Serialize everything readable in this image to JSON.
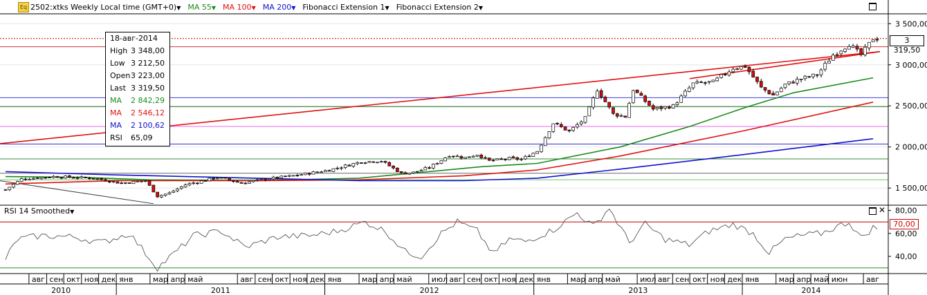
{
  "header": {
    "app_icon": "Eq",
    "instrument": "2502:xtks Weekly Local time (GMT+0)",
    "indicators": [
      {
        "label": "MA 55",
        "color": "#1a8a1a"
      },
      {
        "label": "MA 100",
        "color": "#e01010"
      },
      {
        "label": "MA 200",
        "color": "#1010cc"
      },
      {
        "label": "Fibonacci Extension 1",
        "color": "#000000"
      },
      {
        "label": "Fibonacci Extension 2",
        "color": "#000000"
      }
    ]
  },
  "tooltip": {
    "date": "18-авг-2014",
    "rows": [
      {
        "key": "High",
        "value": "3 348,00",
        "color": "#000000"
      },
      {
        "key": "Low",
        "value": "3 212,50",
        "color": "#000000"
      },
      {
        "key": "Open",
        "value": "3 223,00",
        "color": "#000000"
      },
      {
        "key": "Last",
        "value": "3 319,50",
        "color": "#000000"
      },
      {
        "key": "MA",
        "value": "2 842,29",
        "color": "#1a8a1a"
      },
      {
        "key": "MA",
        "value": "2 546,12",
        "color": "#e01010"
      },
      {
        "key": "MA",
        "value": "2 100,62",
        "color": "#1010cc"
      },
      {
        "key": "RSI",
        "value": "65,09",
        "color": "#000000"
      }
    ]
  },
  "rsi_panel": {
    "title": "RSI 14 Smoothed",
    "current_value": "70,00",
    "close_icon": "close-icon"
  },
  "chart_data": {
    "type": "candlestick",
    "price_axis": {
      "ticks": [
        {
          "value": 1500,
          "label": "1 500,00"
        },
        {
          "value": 2000,
          "label": "2 000,00"
        },
        {
          "value": 2500,
          "label": "2 500,00"
        },
        {
          "value": 3000,
          "label": "3 000,00"
        },
        {
          "value": 3500,
          "label": "3 500,00"
        }
      ],
      "range": [
        1300,
        3620
      ],
      "last_price": 3319.5,
      "last_price_label": "3 319,50"
    },
    "rsi_axis": {
      "ticks": [
        {
          "value": 40,
          "label": "40,00"
        },
        {
          "value": 60,
          "label": "60,00"
        },
        {
          "value": 80,
          "label": "80,00"
        }
      ],
      "range": [
        25,
        84
      ],
      "overbought": 70,
      "oversold": 30
    },
    "horizontal_levels": [
      {
        "value": 3320,
        "color": "#c00000",
        "style": "dotted"
      },
      {
        "value": 3220,
        "color": "#cc3030",
        "style": "solid"
      },
      {
        "value": 2600,
        "color": "#4040dd",
        "style": "solid"
      },
      {
        "value": 2490,
        "color": "#2c7a2c",
        "style": "solid"
      },
      {
        "value": 2250,
        "color": "#ee66ee",
        "style": "solid"
      },
      {
        "value": 2035,
        "color": "#2a2acc",
        "style": "solid"
      },
      {
        "value": 1855,
        "color": "#3a8a3a",
        "style": "solid"
      },
      {
        "value": 1680,
        "color": "#666666",
        "style": "solid"
      },
      {
        "value": 1600,
        "color": "#66cc66",
        "style": "solid"
      }
    ],
    "trendlines": [
      {
        "x1": "2010-05-01",
        "y1": 2010,
        "x2": "2014-08-30",
        "y2": 3160,
        "color": "#e01010"
      },
      {
        "x1": "2010-05-01",
        "y1": 1600,
        "x2": "2014-08-30",
        "y2": 3160,
        "color": "#e01010",
        "segment": "tail"
      },
      {
        "x1": "2010-06-01",
        "y1": 1600,
        "x2": "2011-03-07",
        "y2": 1310,
        "color": "#333333"
      }
    ],
    "time_axis": {
      "start": "2010-06-21",
      "end": "2014-08-30",
      "months": [
        "авг",
        "сен",
        "окт",
        "ноя",
        "дек",
        "янв",
        "мар",
        "апр",
        "май",
        "авг",
        "сен",
        "окт",
        "ноя",
        "дек",
        "янв",
        "мар",
        "апр",
        "май",
        "июл",
        "авг",
        "сен",
        "окт",
        "ноя",
        "дек",
        "янв",
        "мар",
        "апр",
        "май",
        "июл",
        "авг",
        "сен",
        "окт",
        "ноя",
        "дек",
        "янв",
        "мар",
        "апр",
        "май",
        "июн",
        "авг"
      ],
      "years": [
        "2010",
        "2011",
        "2012",
        "2013",
        "2014"
      ]
    },
    "price_anchors": [
      [
        "2010-06-21",
        1480
      ],
      [
        "2010-07-19",
        1610
      ],
      [
        "2010-09-13",
        1640
      ],
      [
        "2010-11-22",
        1620
      ],
      [
        "2011-01-10",
        1560
      ],
      [
        "2011-02-21",
        1590
      ],
      [
        "2011-03-14",
        1400
      ],
      [
        "2011-04-04",
        1440
      ],
      [
        "2011-05-02",
        1540
      ],
      [
        "2011-06-27",
        1630
      ],
      [
        "2011-08-08",
        1560
      ],
      [
        "2011-09-19",
        1610
      ],
      [
        "2011-11-07",
        1650
      ],
      [
        "2012-01-09",
        1720
      ],
      [
        "2012-03-05",
        1820
      ],
      [
        "2012-04-09",
        1830
      ],
      [
        "2012-05-14",
        1680
      ],
      [
        "2012-06-04",
        1690
      ],
      [
        "2012-07-02",
        1750
      ],
      [
        "2012-08-06",
        1900
      ],
      [
        "2012-09-03",
        1870
      ],
      [
        "2012-09-24",
        1910
      ],
      [
        "2012-10-15",
        1830
      ],
      [
        "2012-11-19",
        1860
      ],
      [
        "2012-12-10",
        1850
      ],
      [
        "2013-01-07",
        1950
      ],
      [
        "2013-02-04",
        2290
      ],
      [
        "2013-03-04",
        2190
      ],
      [
        "2013-04-01",
        2350
      ],
      [
        "2013-04-22",
        2700
      ],
      [
        "2013-05-20",
        2400
      ],
      [
        "2013-06-10",
        2370
      ],
      [
        "2013-06-24",
        2700
      ],
      [
        "2013-07-29",
        2460
      ],
      [
        "2013-09-02",
        2500
      ],
      [
        "2013-10-07",
        2770
      ],
      [
        "2013-11-11",
        2790
      ],
      [
        "2013-12-16",
        2960
      ],
      [
        "2014-01-06",
        2980
      ],
      [
        "2014-02-03",
        2720
      ],
      [
        "2014-02-24",
        2630
      ],
      [
        "2014-03-17",
        2760
      ],
      [
        "2014-04-14",
        2830
      ],
      [
        "2014-05-12",
        2880
      ],
      [
        "2014-06-09",
        3120
      ],
      [
        "2014-07-07",
        3250
      ],
      [
        "2014-07-28",
        3120
      ],
      [
        "2014-08-18",
        3320
      ]
    ],
    "ma_series": [
      {
        "name": "MA 55",
        "color": "#1a8a1a",
        "points": [
          [
            "2010-06-21",
            1640
          ],
          [
            "2010-11-01",
            1630
          ],
          [
            "2011-03-01",
            1600
          ],
          [
            "2011-09-01",
            1590
          ],
          [
            "2012-03-01",
            1620
          ],
          [
            "2012-06-01",
            1680
          ],
          [
            "2012-10-01",
            1760
          ],
          [
            "2013-01-07",
            1800
          ],
          [
            "2013-06-01",
            2000
          ],
          [
            "2013-10-01",
            2250
          ],
          [
            "2014-01-06",
            2480
          ],
          [
            "2014-04-01",
            2660
          ],
          [
            "2014-08-18",
            2842
          ]
        ]
      },
      {
        "name": "MA 100",
        "color": "#e01010",
        "points": [
          [
            "2010-06-21",
            1550
          ],
          [
            "2011-01-01",
            1590
          ],
          [
            "2011-09-01",
            1590
          ],
          [
            "2012-03-01",
            1600
          ],
          [
            "2012-09-01",
            1650
          ],
          [
            "2013-01-07",
            1720
          ],
          [
            "2013-06-01",
            1890
          ],
          [
            "2014-01-06",
            2200
          ],
          [
            "2014-08-18",
            2546
          ]
        ]
      },
      {
        "name": "MA 200",
        "color": "#1010cc",
        "points": [
          [
            "2010-06-21",
            1700
          ],
          [
            "2011-01-01",
            1660
          ],
          [
            "2011-09-01",
            1620
          ],
          [
            "2012-03-01",
            1590
          ],
          [
            "2012-09-01",
            1590
          ],
          [
            "2013-01-07",
            1620
          ],
          [
            "2013-06-01",
            1730
          ],
          [
            "2014-01-06",
            1910
          ],
          [
            "2014-08-18",
            2100
          ]
        ]
      }
    ],
    "rsi_anchors": [
      [
        "2010-06-21",
        38
      ],
      [
        "2010-07-12",
        55
      ],
      [
        "2010-08-23",
        58
      ],
      [
        "2010-10-18",
        57
      ],
      [
        "2010-12-06",
        52
      ],
      [
        "2011-01-24",
        60
      ],
      [
        "2011-03-14",
        30
      ],
      [
        "2011-04-18",
        45
      ],
      [
        "2011-05-16",
        58
      ],
      [
        "2011-07-04",
        62
      ],
      [
        "2011-08-15",
        48
      ],
      [
        "2011-10-10",
        57
      ],
      [
        "2011-12-05",
        58
      ],
      [
        "2012-01-23",
        62
      ],
      [
        "2012-03-12",
        70
      ],
      [
        "2012-04-16",
        62
      ],
      [
        "2012-05-21",
        44
      ],
      [
        "2012-06-18",
        40
      ],
      [
        "2012-07-23",
        60
      ],
      [
        "2012-08-20",
        70
      ],
      [
        "2012-09-24",
        62
      ],
      [
        "2012-10-22",
        42
      ],
      [
        "2012-11-19",
        55
      ],
      [
        "2012-12-17",
        53
      ],
      [
        "2013-02-04",
        63
      ],
      [
        "2013-03-18",
        78
      ],
      [
        "2013-04-15",
        66
      ],
      [
        "2013-05-13",
        82
      ],
      [
        "2013-06-17",
        52
      ],
      [
        "2013-07-15",
        68
      ],
      [
        "2013-08-19",
        55
      ],
      [
        "2013-09-30",
        50
      ],
      [
        "2013-11-04",
        62
      ],
      [
        "2013-12-16",
        68
      ],
      [
        "2014-01-20",
        60
      ],
      [
        "2014-02-17",
        43
      ],
      [
        "2014-03-17",
        55
      ],
      [
        "2014-04-14",
        58
      ],
      [
        "2014-05-19",
        60
      ],
      [
        "2014-06-16",
        66
      ],
      [
        "2014-07-07",
        70
      ],
      [
        "2014-07-28",
        56
      ],
      [
        "2014-08-18",
        65
      ]
    ]
  }
}
